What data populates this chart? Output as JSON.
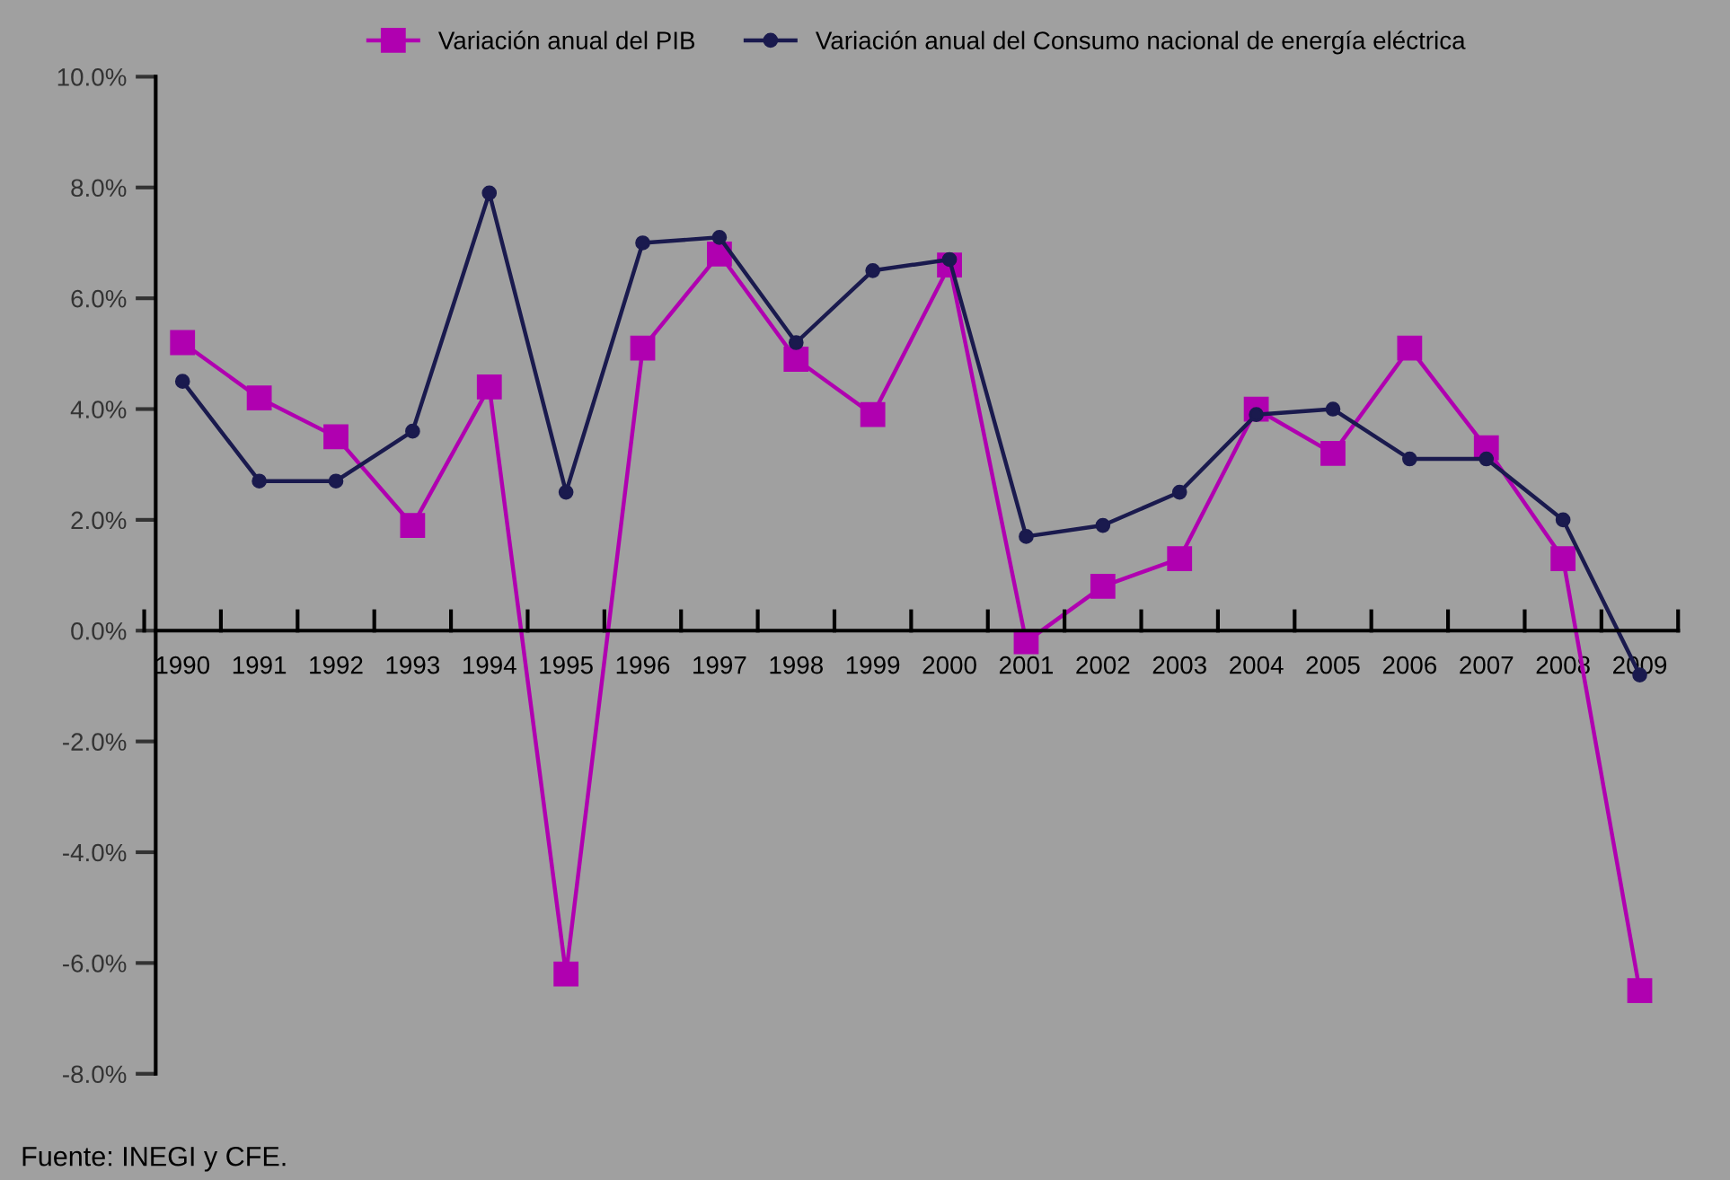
{
  "chart_data": {
    "type": "line",
    "categories": [
      "1990",
      "1991",
      "1992",
      "1993",
      "1994",
      "1995",
      "1996",
      "1997",
      "1998",
      "1999",
      "2000",
      "2001",
      "2002",
      "2003",
      "2004",
      "2005",
      "2006",
      "2007",
      "2008",
      "2009"
    ],
    "series": [
      {
        "name": "Variación anual del PIB",
        "color": "#b000b0",
        "marker": "square",
        "values": [
          5.2,
          4.2,
          3.5,
          1.9,
          4.4,
          -6.2,
          5.1,
          6.8,
          4.9,
          3.9,
          6.6,
          -0.2,
          0.8,
          1.3,
          4.0,
          3.2,
          5.1,
          3.3,
          1.3,
          -6.5
        ]
      },
      {
        "name": "Variación anual del Consumo nacional de energía eléctrica",
        "color": "#1a1a4e",
        "marker": "circle",
        "values": [
          4.5,
          2.7,
          2.7,
          3.6,
          7.9,
          2.5,
          7.0,
          7.1,
          5.2,
          6.5,
          6.7,
          1.7,
          1.9,
          2.5,
          3.9,
          4.0,
          3.1,
          3.1,
          2.0,
          -0.8
        ]
      }
    ],
    "ylim": [
      -8,
      10
    ],
    "yticks": [
      {
        "value": -8,
        "label": "-8.0%"
      },
      {
        "value": -6,
        "label": "-6.0%"
      },
      {
        "value": -4,
        "label": "-4.0%"
      },
      {
        "value": -2,
        "label": "-2.0%"
      },
      {
        "value": 0,
        "label": "0.0%"
      },
      {
        "value": 2,
        "label": "2.0%"
      },
      {
        "value": 4,
        "label": "4.0%"
      },
      {
        "value": 6,
        "label": "6.0%"
      },
      {
        "value": 8,
        "label": "8.0%"
      },
      {
        "value": 10,
        "label": "10.0%"
      }
    ],
    "grid": false,
    "legend": "top",
    "line_style": "solid",
    "annotations": [
      "Fuente: INEGI y CFE."
    ]
  }
}
